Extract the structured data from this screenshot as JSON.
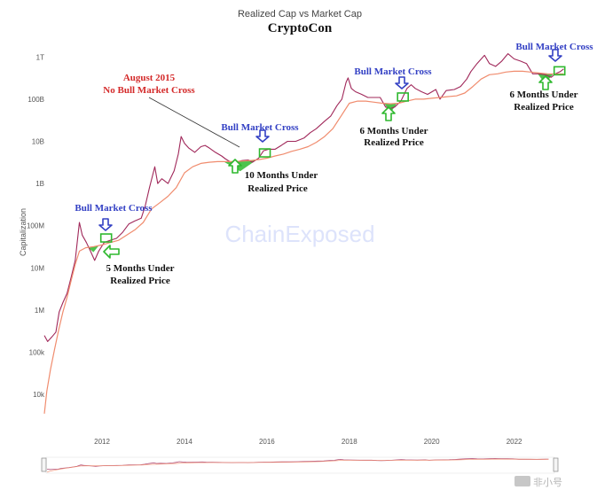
{
  "chart_data": {
    "type": "line",
    "title": "CryptoCon",
    "subtitle": "Realized Cap vs Market Cap",
    "ylabel": "Capitalization",
    "y_scale": "log",
    "ylim": [
      3000,
      2000000000000
    ],
    "xlim": [
      2010.6,
      2023.3
    ],
    "x_ticks": [
      {
        "label": "2012",
        "value": 2012
      },
      {
        "label": "2014",
        "value": 2014
      },
      {
        "label": "2016",
        "value": 2016
      },
      {
        "label": "2018",
        "value": 2018
      },
      {
        "label": "2020",
        "value": 2020
      },
      {
        "label": "2022",
        "value": 2022
      }
    ],
    "y_ticks": [
      {
        "label": "10k",
        "value": 10000
      },
      {
        "label": "100k",
        "value": 100000
      },
      {
        "label": "1M",
        "value": 1000000
      },
      {
        "label": "10M",
        "value": 10000000
      },
      {
        "label": "100M",
        "value": 100000000
      },
      {
        "label": "1B",
        "value": 1000000000
      },
      {
        "label": "10B",
        "value": 10000000000
      },
      {
        "label": "100B",
        "value": 100000000000
      },
      {
        "label": "1T",
        "value": 1000000000000
      }
    ],
    "grid": false,
    "watermark": "ChainExposed",
    "series": [
      {
        "color": "#a0285a",
        "points": [
          [
            2010.6,
            250000
          ],
          [
            2010.68,
            180000
          ],
          [
            2010.78,
            230000
          ],
          [
            2010.88,
            300000
          ],
          [
            2010.96,
            900000
          ],
          [
            2011.05,
            1500000
          ],
          [
            2011.15,
            2500000
          ],
          [
            2011.25,
            6000000
          ],
          [
            2011.35,
            15000000
          ],
          [
            2011.45,
            120000000
          ],
          [
            2011.52,
            60000000
          ],
          [
            2011.62,
            40000000
          ],
          [
            2011.72,
            25000000
          ],
          [
            2011.82,
            15000000
          ],
          [
            2011.92,
            25000000
          ],
          [
            2012.05,
            40000000
          ],
          [
            2012.2,
            45000000
          ],
          [
            2012.35,
            50000000
          ],
          [
            2012.5,
            70000000
          ],
          [
            2012.65,
            110000000
          ],
          [
            2012.8,
            130000000
          ],
          [
            2012.95,
            150000000
          ],
          [
            2013.05,
            300000000
          ],
          [
            2013.15,
            800000000
          ],
          [
            2013.28,
            2500000000
          ],
          [
            2013.35,
            1000000000
          ],
          [
            2013.45,
            1300000000
          ],
          [
            2013.6,
            1000000000
          ],
          [
            2013.75,
            2000000000
          ],
          [
            2013.85,
            5000000000
          ],
          [
            2013.92,
            13000000000
          ],
          [
            2014.0,
            9000000000
          ],
          [
            2014.1,
            7000000000
          ],
          [
            2014.25,
            5500000000
          ],
          [
            2014.4,
            7500000000
          ],
          [
            2014.5,
            8000000000
          ],
          [
            2014.6,
            7000000000
          ],
          [
            2014.75,
            5500000000
          ],
          [
            2014.9,
            4500000000
          ],
          [
            2015.0,
            3800000000
          ],
          [
            2015.1,
            3300000000
          ],
          [
            2015.25,
            3200000000
          ],
          [
            2015.4,
            3500000000
          ],
          [
            2015.55,
            3600000000
          ],
          [
            2015.65,
            3200000000
          ],
          [
            2015.8,
            4000000000
          ],
          [
            2015.92,
            6000000000
          ],
          [
            2016.05,
            6500000000
          ],
          [
            2016.2,
            6500000000
          ],
          [
            2016.35,
            8000000000
          ],
          [
            2016.5,
            10000000000
          ],
          [
            2016.7,
            10000000000
          ],
          [
            2016.9,
            12000000000
          ],
          [
            2017.05,
            16000000000
          ],
          [
            2017.2,
            20000000000
          ],
          [
            2017.4,
            30000000000
          ],
          [
            2017.55,
            40000000000
          ],
          [
            2017.7,
            70000000000
          ],
          [
            2017.82,
            100000000000
          ],
          [
            2017.92,
            250000000000
          ],
          [
            2017.97,
            320000000000
          ],
          [
            2018.05,
            180000000000
          ],
          [
            2018.15,
            150000000000
          ],
          [
            2018.3,
            130000000000
          ],
          [
            2018.45,
            110000000000
          ],
          [
            2018.6,
            110000000000
          ],
          [
            2018.75,
            110000000000
          ],
          [
            2018.88,
            65000000000
          ],
          [
            2019.0,
            60000000000
          ],
          [
            2019.1,
            65000000000
          ],
          [
            2019.25,
            90000000000
          ],
          [
            2019.4,
            180000000000
          ],
          [
            2019.5,
            220000000000
          ],
          [
            2019.6,
            180000000000
          ],
          [
            2019.75,
            150000000000
          ],
          [
            2019.9,
            130000000000
          ],
          [
            2020.1,
            170000000000
          ],
          [
            2020.2,
            100000000000
          ],
          [
            2020.35,
            160000000000
          ],
          [
            2020.55,
            170000000000
          ],
          [
            2020.7,
            200000000000
          ],
          [
            2020.85,
            300000000000
          ],
          [
            2020.95,
            450000000000
          ],
          [
            2021.1,
            700000000000
          ],
          [
            2021.28,
            1100000000000
          ],
          [
            2021.4,
            700000000000
          ],
          [
            2021.55,
            600000000000
          ],
          [
            2021.7,
            800000000000
          ],
          [
            2021.85,
            1200000000000
          ],
          [
            2022.0,
            900000000000
          ],
          [
            2022.15,
            800000000000
          ],
          [
            2022.3,
            700000000000
          ],
          [
            2022.45,
            400000000000
          ],
          [
            2022.6,
            400000000000
          ],
          [
            2022.75,
            380000000000
          ],
          [
            2022.9,
            330000000000
          ],
          [
            2023.0,
            400000000000
          ],
          [
            2023.12,
            450000000000
          ],
          [
            2023.2,
            520000000000
          ]
        ]
      },
      {
        "color": "#f08c6e",
        "points": [
          [
            2010.6,
            3500
          ],
          [
            2010.66,
            12000
          ],
          [
            2010.75,
            40000
          ],
          [
            2010.85,
            120000
          ],
          [
            2010.95,
            350000
          ],
          [
            2011.05,
            900000
          ],
          [
            2011.15,
            2000000
          ],
          [
            2011.25,
            5000000
          ],
          [
            2011.35,
            12000000
          ],
          [
            2011.45,
            25000000
          ],
          [
            2011.6,
            30000000
          ],
          [
            2011.8,
            32000000
          ],
          [
            2012.0,
            35000000
          ],
          [
            2012.2,
            40000000
          ],
          [
            2012.4,
            45000000
          ],
          [
            2012.6,
            60000000
          ],
          [
            2012.8,
            80000000
          ],
          [
            2013.0,
            120000000
          ],
          [
            2013.2,
            250000000
          ],
          [
            2013.4,
            350000000
          ],
          [
            2013.6,
            500000000
          ],
          [
            2013.8,
            800000000
          ],
          [
            2014.0,
            1800000000
          ],
          [
            2014.2,
            2500000000
          ],
          [
            2014.4,
            3000000000
          ],
          [
            2014.6,
            3200000000
          ],
          [
            2014.8,
            3300000000
          ],
          [
            2015.0,
            3300000000
          ],
          [
            2015.2,
            3300000000
          ],
          [
            2015.4,
            3400000000
          ],
          [
            2015.6,
            3500000000
          ],
          [
            2015.8,
            3700000000
          ],
          [
            2016.0,
            4000000000
          ],
          [
            2016.2,
            4500000000
          ],
          [
            2016.4,
            5000000000
          ],
          [
            2016.6,
            5800000000
          ],
          [
            2016.8,
            6500000000
          ],
          [
            2017.0,
            7500000000
          ],
          [
            2017.2,
            9500000000
          ],
          [
            2017.4,
            13000000000
          ],
          [
            2017.6,
            20000000000
          ],
          [
            2017.8,
            40000000000
          ],
          [
            2018.0,
            80000000000
          ],
          [
            2018.2,
            90000000000
          ],
          [
            2018.4,
            90000000000
          ],
          [
            2018.6,
            85000000000
          ],
          [
            2018.8,
            80000000000
          ],
          [
            2019.0,
            78000000000
          ],
          [
            2019.2,
            80000000000
          ],
          [
            2019.4,
            90000000000
          ],
          [
            2019.6,
            100000000000
          ],
          [
            2019.8,
            100000000000
          ],
          [
            2020.0,
            105000000000
          ],
          [
            2020.2,
            110000000000
          ],
          [
            2020.4,
            115000000000
          ],
          [
            2020.6,
            120000000000
          ],
          [
            2020.8,
            140000000000
          ],
          [
            2021.0,
            200000000000
          ],
          [
            2021.2,
            300000000000
          ],
          [
            2021.4,
            380000000000
          ],
          [
            2021.6,
            400000000000
          ],
          [
            2021.8,
            440000000000
          ],
          [
            2022.0,
            460000000000
          ],
          [
            2022.2,
            460000000000
          ],
          [
            2022.4,
            440000000000
          ],
          [
            2022.6,
            420000000000
          ],
          [
            2022.8,
            400000000000
          ],
          [
            2023.0,
            395000000000
          ],
          [
            2023.2,
            400000000000
          ]
        ]
      }
    ],
    "annotations": [
      {
        "text": "August 2015",
        "x": 2014.9,
        "y": 3300000000
      },
      {
        "text": "No Bull Market Cross",
        "x": 2014.9,
        "y": 3300000000
      },
      {
        "text": "Bull Market Cross",
        "x": 2012.1,
        "y": 50000000
      },
      {
        "text": "5 Months Under",
        "x": 2011.85,
        "y": 15000000
      },
      {
        "text": "Realized Price",
        "x": 2011.85,
        "y": 15000000
      },
      {
        "text": "Bull Market Cross",
        "x": 2015.95,
        "y": 5000000000
      },
      {
        "text": "10 Months Under",
        "x": 2015.2,
        "y": 3200000000
      },
      {
        "text": "Realized Price",
        "x": 2015.2,
        "y": 3200000000
      },
      {
        "text": "Bull Market Cross",
        "x": 2019.3,
        "y": 100000000000
      },
      {
        "text": "6 Months Under",
        "x": 2019.0,
        "y": 60000000000
      },
      {
        "text": "Realized Price",
        "x": 2019.0,
        "y": 60000000000
      },
      {
        "text": "Bull Market Cross",
        "x": 2023.1,
        "y": 450000000000
      },
      {
        "text": "6 Months Under",
        "x": 2022.9,
        "y": 330000000000
      },
      {
        "text": "Realized Price",
        "x": 2022.9,
        "y": 330000000000
      }
    ],
    "colors": {
      "market_cap": "#a0285a",
      "realized_cap": "#f08c6e",
      "cross_label": "#3340c4",
      "august_label": "#d42a2a",
      "highlight": "#2eb82e",
      "arrow_blue": "#3340c4",
      "arrow_green": "#2eb82e"
    }
  },
  "footer_logo": "非小号"
}
